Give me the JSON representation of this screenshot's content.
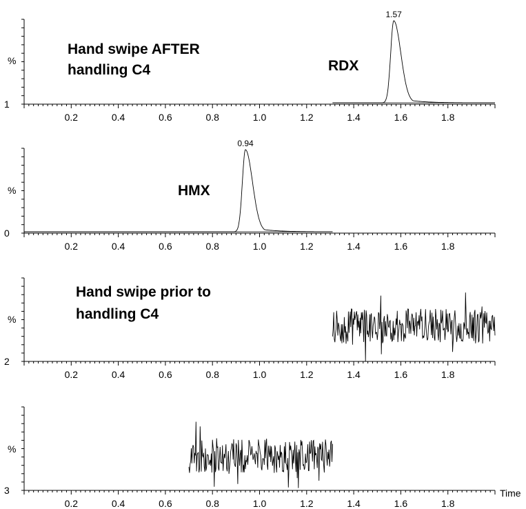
{
  "chart_data": [
    {
      "type": "line",
      "ylabel": "%",
      "baseline_label": "1",
      "xlim": [
        0.0,
        2.0
      ],
      "xticks": [
        "0.2",
        "0.4",
        "0.6",
        "0.8",
        "1.0",
        "1.2",
        "1.4",
        "1.6",
        "1.8"
      ],
      "trace_range": [
        1.31,
        2.0
      ],
      "trace_kind": "peak",
      "peak": {
        "x": 1.57,
        "label": "1.57"
      },
      "annotations": [
        {
          "text": "Hand swipe AFTER"
        },
        {
          "text": "handling C4"
        },
        {
          "text": "RDX"
        }
      ]
    },
    {
      "type": "line",
      "ylabel": "%",
      "baseline_label": "0",
      "xlim": [
        0.0,
        2.0
      ],
      "xticks": [
        "0.2",
        "0.4",
        "0.6",
        "0.8",
        "1.0",
        "1.2",
        "1.4",
        "1.6",
        "1.8"
      ],
      "trace_range": [
        0.0,
        1.31
      ],
      "trace_kind": "peak",
      "peak": {
        "x": 0.94,
        "label": "0.94"
      },
      "annotations": [
        {
          "text": "HMX"
        }
      ]
    },
    {
      "type": "line",
      "ylabel": "%",
      "baseline_label": "2",
      "xlim": [
        0.0,
        2.0
      ],
      "xticks": [
        "0.2",
        "0.4",
        "0.6",
        "0.8",
        "1.0",
        "1.2",
        "1.4",
        "1.6",
        "1.8"
      ],
      "trace_range": [
        1.31,
        2.0
      ],
      "trace_kind": "noise",
      "annotations": [
        {
          "text": "Hand swipe prior to"
        },
        {
          "text": "handling C4"
        }
      ]
    },
    {
      "type": "line",
      "ylabel": "%",
      "baseline_label": "3",
      "xlabel": "Time",
      "xlim": [
        0.0,
        2.0
      ],
      "xticks": [
        "0.2",
        "0.4",
        "0.6",
        "0.8",
        "1.0",
        "1.2",
        "1.4",
        "1.6",
        "1.8"
      ],
      "trace_range": [
        0.7,
        1.31
      ],
      "trace_kind": "noise",
      "annotations": []
    }
  ]
}
